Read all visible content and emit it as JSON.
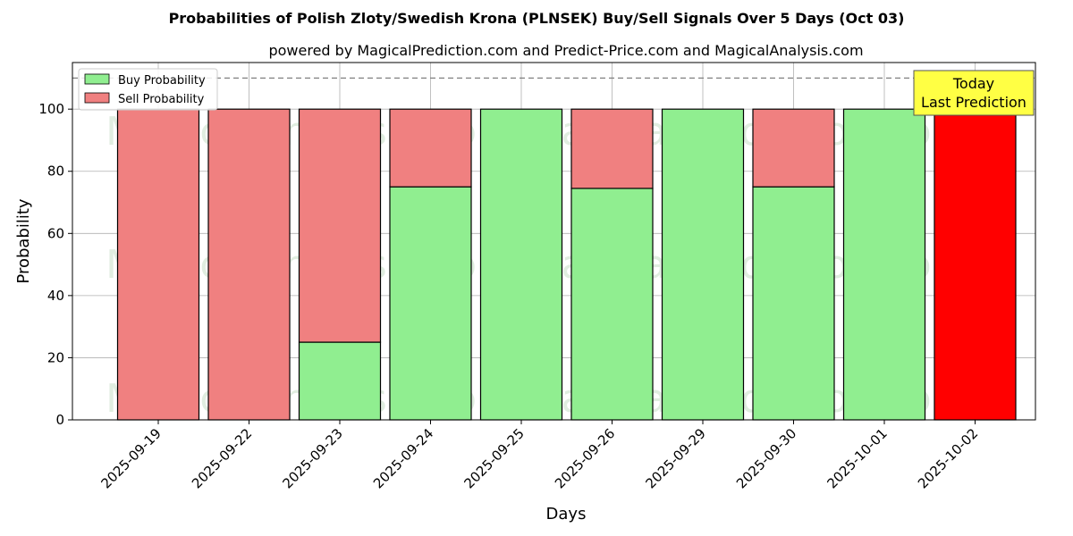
{
  "chart_data": {
    "type": "bar",
    "title": "Probabilities of Polish Zloty/Swedish Krona (PLNSEK) Buy/Sell Signals Over 5 Days (Oct 03)",
    "subtitle": "powered by MagicalPrediction.com and Predict-Price.com and MagicalAnalysis.com",
    "xlabel": "Days",
    "ylabel": "Probability",
    "ylim": [
      0,
      115
    ],
    "yticks": [
      0,
      20,
      40,
      60,
      80,
      100
    ],
    "grid": true,
    "legend_position": "top-left",
    "reference_line": 110,
    "categories": [
      "2025-09-19",
      "2025-09-22",
      "2025-09-23",
      "2025-09-24",
      "2025-09-25",
      "2025-09-26",
      "2025-09-29",
      "2025-09-30",
      "2025-10-01",
      "2025-10-02"
    ],
    "series": [
      {
        "name": "Buy Probability",
        "color": "#90ee90",
        "values": [
          0,
          0,
          25,
          75,
          100,
          74.5,
          100,
          75,
          100,
          0
        ]
      },
      {
        "name": "Sell Probability",
        "color": "#f08080",
        "values": [
          100,
          100,
          75,
          25,
          0,
          25.5,
          0,
          25,
          0,
          100
        ]
      }
    ],
    "highlight": {
      "index": 9,
      "color": "#ff0000"
    },
    "annotation": {
      "line1": "Today",
      "line2": "Last Prediction",
      "color": "#ffff44"
    },
    "watermarks": [
      "MagicalAnalysis.com",
      "MagicalPrediction.com"
    ]
  }
}
